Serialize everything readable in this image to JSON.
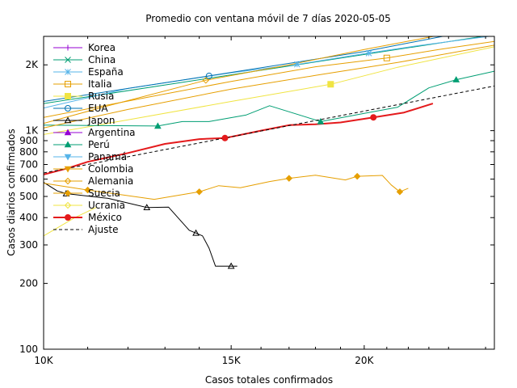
{
  "chart_data": {
    "type": "line",
    "title": "Promedio con ventana móvil de 7 días 2020-05-05",
    "xlabel": "Casos totales confirmados",
    "ylabel": "Casos diarios confirmados",
    "x_scale": "log",
    "y_scale": "log",
    "xlim": [
      10000,
      26500
    ],
    "ylim": [
      100,
      2700
    ],
    "x_ticks": [
      {
        "value": 10000,
        "label": "10K"
      },
      {
        "value": 15000,
        "label": "15K"
      },
      {
        "value": 20000,
        "label": "20K"
      }
    ],
    "y_ticks": [
      {
        "value": 100,
        "label": "100"
      },
      {
        "value": 200,
        "label": "200"
      },
      {
        "value": 300,
        "label": "300"
      },
      {
        "value": 400,
        "label": "400"
      },
      {
        "value": 500,
        "label": "500"
      },
      {
        "value": 600,
        "label": "600"
      },
      {
        "value": 700,
        "label": "700"
      },
      {
        "value": 800,
        "label": "800"
      },
      {
        "value": 900,
        "label": "900"
      },
      {
        "value": 1000,
        "label": "1K"
      },
      {
        "value": 2000,
        "label": "2K"
      }
    ],
    "legend_position": "top-left",
    "grid": false,
    "series": [
      {
        "name": "Korea",
        "color": "#9400d3",
        "marker": "plus",
        "width": 1,
        "points": [],
        "markers": []
      },
      {
        "name": "China",
        "color": "#009e73",
        "marker": "x",
        "width": 1,
        "points": [
          [
            10000,
            1330
          ],
          [
            26500,
            2750
          ]
        ],
        "markers": []
      },
      {
        "name": "España",
        "color": "#56b4e9",
        "marker": "star",
        "width": 1,
        "points": [
          [
            10000,
            1270
          ],
          [
            12000,
            1560
          ],
          [
            15000,
            1840
          ],
          [
            17300,
            2010
          ],
          [
            20000,
            2250
          ],
          [
            22500,
            2450
          ],
          [
            26500,
            2720
          ]
        ],
        "markers": [
          [
            17300,
            2010
          ],
          [
            20200,
            2260
          ]
        ]
      },
      {
        "name": "Italia",
        "color": "#e69f00",
        "marker": "square-open",
        "width": 1,
        "points": [
          [
            10000,
            1150
          ],
          [
            12500,
            1420
          ],
          [
            15000,
            1680
          ],
          [
            18000,
            1960
          ],
          [
            21000,
            2150
          ],
          [
            23500,
            2350
          ],
          [
            26500,
            2560
          ]
        ],
        "markers": [
          [
            21000,
            2150
          ]
        ]
      },
      {
        "name": "Rusia",
        "color": "#f0e442",
        "marker": "square",
        "width": 1,
        "points": [
          [
            10000,
            960
          ],
          [
            12000,
            1120
          ],
          [
            15000,
            1360
          ],
          [
            18600,
            1630
          ],
          [
            21500,
            1950
          ],
          [
            26500,
            2420
          ]
        ],
        "markers": [
          [
            18600,
            1630
          ]
        ]
      },
      {
        "name": "EUA",
        "color": "#0072b2",
        "marker": "circle-open",
        "width": 1,
        "points": [
          [
            10000,
            1360
          ],
          [
            14300,
            1780
          ],
          [
            20000,
            2300
          ],
          [
            26500,
            3000
          ]
        ],
        "markers": [
          [
            14300,
            1780
          ]
        ]
      },
      {
        "name": "Japon",
        "color": "#000000",
        "marker": "triangle-open",
        "width": 1,
        "points": [
          [
            10000,
            580
          ],
          [
            10300,
            530
          ],
          [
            10500,
            515
          ],
          [
            11500,
            490
          ],
          [
            12500,
            445
          ],
          [
            13100,
            447
          ],
          [
            13700,
            350
          ],
          [
            13900,
            340
          ],
          [
            14100,
            330
          ],
          [
            14300,
            290
          ],
          [
            14500,
            240
          ],
          [
            15000,
            240
          ],
          [
            15200,
            240
          ]
        ],
        "markers": [
          [
            10500,
            515
          ],
          [
            12500,
            445
          ],
          [
            13900,
            340
          ],
          [
            15000,
            240
          ]
        ]
      },
      {
        "name": "Argentina",
        "color": "#9400d3",
        "marker": "triangle",
        "width": 1,
        "points": [],
        "markers": []
      },
      {
        "name": "Perú",
        "color": "#009e73",
        "marker": "triangle",
        "width": 1,
        "points": [
          [
            10000,
            1060
          ],
          [
            12800,
            1050
          ],
          [
            13500,
            1100
          ],
          [
            14300,
            1100
          ],
          [
            15500,
            1180
          ],
          [
            16300,
            1300
          ],
          [
            18200,
            1100
          ],
          [
            20000,
            1200
          ],
          [
            21500,
            1280
          ],
          [
            23000,
            1570
          ],
          [
            24400,
            1710
          ],
          [
            26500,
            1870
          ]
        ],
        "markers": [
          [
            12800,
            1050
          ],
          [
            18200,
            1100
          ],
          [
            24400,
            1710
          ]
        ]
      },
      {
        "name": "Panamá",
        "color": "#56b4e9",
        "marker": "triangle-down",
        "width": 1,
        "points": [],
        "markers": []
      },
      {
        "name": "Colombia",
        "color": "#e69f00",
        "marker": "triangle-down",
        "width": 1,
        "points": [
          [
            10000,
            1030
          ],
          [
            12000,
            1250
          ],
          [
            15000,
            1550
          ],
          [
            18000,
            1790
          ],
          [
            21500,
            2050
          ],
          [
            26500,
            2460
          ]
        ],
        "markers": []
      },
      {
        "name": "Alemania",
        "color": "#e69f00",
        "marker": "diamond-open",
        "width": 1,
        "points": [
          [
            10000,
            1080
          ],
          [
            11500,
            1300
          ],
          [
            14200,
            1700
          ],
          [
            17000,
            2000
          ],
          [
            20000,
            2350
          ],
          [
            26500,
            3050
          ]
        ],
        "markers": [
          [
            14200,
            1700
          ]
        ]
      },
      {
        "name": "Suecia",
        "color": "#e69f00",
        "marker": "diamond",
        "width": 1,
        "points": [
          [
            10000,
            575
          ],
          [
            11000,
            535
          ],
          [
            12700,
            485
          ],
          [
            14000,
            525
          ],
          [
            14600,
            560
          ],
          [
            15300,
            548
          ],
          [
            16300,
            585
          ],
          [
            17000,
            605
          ],
          [
            18000,
            625
          ],
          [
            19200,
            595
          ],
          [
            19700,
            618
          ],
          [
            20800,
            624
          ],
          [
            21200,
            565
          ],
          [
            21600,
            525
          ],
          [
            22000,
            545
          ]
        ],
        "markers": [
          [
            11000,
            535
          ],
          [
            14000,
            525
          ],
          [
            17000,
            605
          ],
          [
            19700,
            618
          ],
          [
            21600,
            525
          ]
        ]
      },
      {
        "name": "Ucrania",
        "color": "#f0e442",
        "marker": "diamond-open",
        "width": 1,
        "points": [
          [
            10000,
            330
          ],
          [
            10700,
            400
          ],
          [
            11200,
            445
          ]
        ],
        "markers": []
      },
      {
        "name": "México",
        "color": "#e41a1c",
        "marker": "circle",
        "width": 2,
        "points": [
          [
            10000,
            630
          ],
          [
            10500,
            670
          ],
          [
            11000,
            720
          ],
          [
            12000,
            790
          ],
          [
            13000,
            870
          ],
          [
            14000,
            915
          ],
          [
            14800,
            925
          ],
          [
            16000,
            1000
          ],
          [
            17000,
            1060
          ],
          [
            18000,
            1070
          ],
          [
            19000,
            1090
          ],
          [
            20400,
            1150
          ],
          [
            21800,
            1210
          ],
          [
            23200,
            1330
          ]
        ],
        "markers": [
          [
            14800,
            925
          ],
          [
            20400,
            1150
          ]
        ]
      },
      {
        "name": "Ajuste",
        "color": "#000000",
        "marker": "none",
        "width": 1,
        "dash": "4,3",
        "points": [
          [
            10000,
            640
          ],
          [
            26500,
            1600
          ]
        ],
        "markers": []
      }
    ]
  }
}
